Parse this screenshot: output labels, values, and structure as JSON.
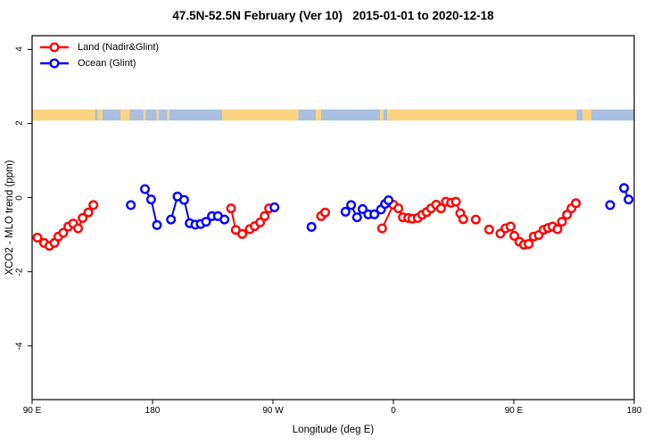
{
  "title": "47.5N-52.5N February (Ver 10)   2015-01-01 to 2020-12-18",
  "chart_data": {
    "type": "scatter",
    "title": "47.5N-52.5N February (Ver 10)   2015-01-01 to 2020-12-18",
    "xlabel": "Longitude (deg E)",
    "ylabel": "XCO2 - MLO trend (ppm)",
    "x_range": [
      90,
      540
    ],
    "y_range": [
      -5.45,
      4.37
    ],
    "grid": "off",
    "legend_position": "top-left-inside",
    "x_ticks": [
      {
        "lon": 90,
        "label": "90 E"
      },
      {
        "lon": 180,
        "label": "180"
      },
      {
        "lon": 270,
        "label": "90 W"
      },
      {
        "lon": 360,
        "label": "0"
      },
      {
        "lon": 450,
        "label": "90 E"
      },
      {
        "lon": 540,
        "label": "180"
      }
    ],
    "y_ticks": [
      {
        "val": 4,
        "label": "4"
      },
      {
        "val": 2,
        "label": "2"
      },
      {
        "val": 0,
        "label": "0"
      },
      {
        "val": -2,
        "label": "-2"
      },
      {
        "val": -4,
        "label": "-4"
      }
    ],
    "band": {
      "description": "land/ocean mask strip along latitude band",
      "value_top": 2.38,
      "value_bottom": 2.08,
      "land_color": "#FAD480",
      "ocean_color": "#A9BEE1",
      "segments": [
        {
          "from": 90,
          "to": 137,
          "type": "land"
        },
        {
          "from": 137,
          "to": 139,
          "type": "ocean"
        },
        {
          "from": 139,
          "to": 142.5,
          "type": "land"
        },
        {
          "from": 142.5,
          "to": 156,
          "type": "ocean"
        },
        {
          "from": 156,
          "to": 163,
          "type": "land"
        },
        {
          "from": 163,
          "to": 173.5,
          "type": "ocean"
        },
        {
          "from": 173.5,
          "to": 175,
          "type": "land"
        },
        {
          "from": 175,
          "to": 183,
          "type": "ocean"
        },
        {
          "from": 183,
          "to": 184.5,
          "type": "land"
        },
        {
          "from": 184.5,
          "to": 191,
          "type": "ocean"
        },
        {
          "from": 191,
          "to": 192.5,
          "type": "land"
        },
        {
          "from": 192.5,
          "to": 232,
          "type": "ocean"
        },
        {
          "from": 232,
          "to": 289,
          "type": "land"
        },
        {
          "from": 289,
          "to": 302,
          "type": "ocean"
        },
        {
          "from": 302,
          "to": 306,
          "type": "land"
        },
        {
          "from": 306,
          "to": 350,
          "type": "ocean"
        },
        {
          "from": 350,
          "to": 352.5,
          "type": "land"
        },
        {
          "from": 352.5,
          "to": 355.5,
          "type": "ocean"
        },
        {
          "from": 355.5,
          "to": 497,
          "type": "land"
        },
        {
          "from": 497,
          "to": 501.5,
          "type": "ocean"
        },
        {
          "from": 501.5,
          "to": 508,
          "type": "land"
        },
        {
          "from": 508,
          "to": 540,
          "type": "ocean"
        }
      ]
    },
    "series": [
      {
        "name": "Land (Nadir&Glint)",
        "color": "#FF0000",
        "chains": [
          [
            [
              94,
              -1.08
            ],
            [
              98.9,
              -1.22
            ],
            [
              102.9,
              -1.3
            ],
            [
              106.7,
              -1.22
            ],
            [
              109.6,
              -1.05
            ],
            [
              113.3,
              -0.95
            ],
            [
              117.1,
              -0.78
            ],
            [
              120.7,
              -0.7
            ],
            [
              124.4,
              -0.83
            ],
            [
              127.8,
              -0.55
            ],
            [
              132,
              -0.4
            ],
            [
              135.8,
              -0.2
            ]
          ],
          [
            [
              238.7,
              -0.29
            ],
            [
              242.2,
              -0.87
            ],
            [
              247.1,
              -0.98
            ],
            [
              252.7,
              -0.85
            ],
            [
              256.4,
              -0.77
            ],
            [
              260.4,
              -0.67
            ],
            [
              263.8,
              -0.5
            ],
            [
              267.1,
              -0.29
            ]
          ],
          [
            [
              306,
              -0.5
            ],
            [
              309,
              -0.4
            ]
          ],
          [
            [
              351.6,
              -0.83
            ],
            [
              360,
              -0.19
            ],
            [
              363.8,
              -0.29
            ],
            [
              367.1,
              -0.53
            ],
            [
              371.1,
              -0.55
            ],
            [
              374.2,
              -0.57
            ],
            [
              378.2,
              -0.55
            ],
            [
              381.6,
              -0.46
            ],
            [
              384.9,
              -0.39
            ],
            [
              388.2,
              -0.29
            ],
            [
              392,
              -0.19
            ],
            [
              395.6,
              -0.29
            ],
            [
              399.3,
              -0.11
            ],
            [
              403.1,
              -0.14
            ],
            [
              406.7,
              -0.11
            ],
            [
              410,
              -0.42
            ],
            [
              412.2,
              -0.58
            ]
          ],
          [
            [
              421.6,
              -0.59
            ]
          ],
          [
            [
              431.6,
              -0.86
            ]
          ],
          [
            [
              440,
              -0.97
            ],
            [
              443.8,
              -0.83
            ],
            [
              447.6,
              -0.78
            ],
            [
              450.4,
              -1.03
            ],
            [
              454.2,
              -1.19
            ],
            [
              457.6,
              -1.27
            ],
            [
              461.1,
              -1.25
            ],
            [
              464.9,
              -1.05
            ],
            [
              468.7,
              -1.01
            ],
            [
              472.2,
              -0.87
            ],
            [
              475.6,
              -0.82
            ],
            [
              478.9,
              -0.78
            ],
            [
              482.7,
              -0.85
            ],
            [
              486,
              -0.65
            ],
            [
              489.8,
              -0.46
            ],
            [
              493.1,
              -0.29
            ],
            [
              496.4,
              -0.15
            ]
          ]
        ]
      },
      {
        "name": "Ocean (Glint)",
        "color": "#0000FF",
        "chains": [
          [
            [
              163.8,
              -0.2
            ]
          ],
          [
            [
              174.3,
              0.23
            ],
            [
              178.9,
              -0.05
            ],
            [
              183.3,
              -0.74
            ]
          ],
          [
            [
              193.8,
              -0.59
            ],
            [
              198.7,
              0.03
            ],
            [
              203.6,
              -0.06
            ],
            [
              207.8,
              -0.69
            ],
            [
              212,
              -0.73
            ],
            [
              216,
              -0.71
            ],
            [
              220,
              -0.65
            ],
            [
              224.4,
              -0.5
            ],
            [
              228.9,
              -0.5
            ],
            [
              233.8,
              -0.59
            ]
          ],
          [
            [
              271.1,
              -0.26
            ]
          ],
          [
            [
              298.8,
              -0.79
            ]
          ],
          [
            [
              324.2,
              -0.38
            ],
            [
              328.4,
              -0.2
            ],
            [
              332.9,
              -0.53
            ],
            [
              337,
              -0.31
            ],
            [
              341.3,
              -0.45
            ],
            [
              345.8,
              -0.45
            ],
            [
              350.7,
              -0.32
            ],
            [
              353.8,
              -0.17
            ],
            [
              356.4,
              -0.07
            ]
          ],
          [
            [
              522,
              -0.2
            ]
          ],
          [
            [
              532.4,
              0.26
            ],
            [
              535.8,
              -0.05
            ]
          ]
        ]
      }
    ]
  }
}
